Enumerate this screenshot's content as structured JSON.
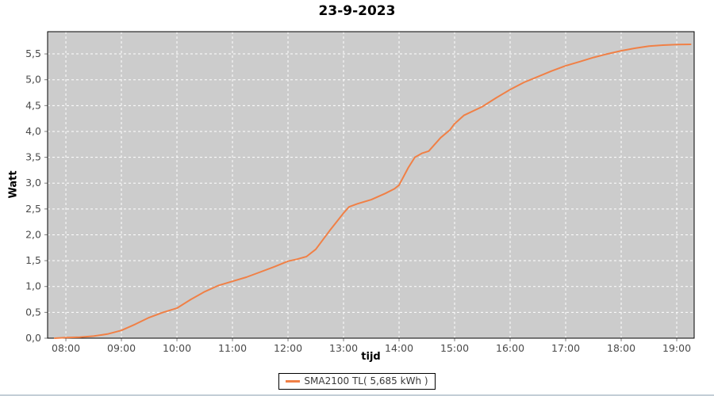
{
  "chart_data": {
    "type": "line",
    "title": "23-9-2023",
    "xlabel": "tijd",
    "ylabel": "Watt",
    "x_tick_labels": [
      "08:00",
      "09:00",
      "10:00",
      "11:00",
      "12:00",
      "13:00",
      "14:00",
      "15:00",
      "16:00",
      "17:00",
      "18:00",
      "19:00"
    ],
    "y_tick_labels": [
      "0,0",
      "0,5",
      "1,0",
      "1,5",
      "2,0",
      "2,5",
      "3,0",
      "3,5",
      "4,0",
      "4,5",
      "5,0",
      "5,5"
    ],
    "y_tick_values": [
      0,
      0.5,
      1.0,
      1.5,
      2.0,
      2.5,
      3.0,
      3.5,
      4.0,
      4.5,
      5.0,
      5.5
    ],
    "xlim_hours": [
      7.671,
      19.314
    ],
    "ylim": [
      0,
      5.93
    ],
    "grid": "white dashed on gray, both axes",
    "legend": {
      "position": "bottom-center",
      "label": "SMA2100 TL( 5,685 kWh )"
    },
    "series": [
      {
        "name": "SMA2100 TL( 5,685 kWh )",
        "color": "#f08046",
        "points": [
          [
            "07:48",
            0.0
          ],
          [
            "08:00",
            0.01
          ],
          [
            "08:15",
            0.02
          ],
          [
            "08:30",
            0.04
          ],
          [
            "08:45",
            0.08
          ],
          [
            "09:00",
            0.15
          ],
          [
            "09:15",
            0.27
          ],
          [
            "09:30",
            0.4
          ],
          [
            "09:45",
            0.5
          ],
          [
            "10:00",
            0.58
          ],
          [
            "10:15",
            0.75
          ],
          [
            "10:30",
            0.9
          ],
          [
            "10:45",
            1.02
          ],
          [
            "11:00",
            1.1
          ],
          [
            "11:15",
            1.18
          ],
          [
            "11:30",
            1.28
          ],
          [
            "11:45",
            1.38
          ],
          [
            "12:00",
            1.49
          ],
          [
            "12:10",
            1.53
          ],
          [
            "12:20",
            1.58
          ],
          [
            "12:30",
            1.72
          ],
          [
            "12:45",
            2.08
          ],
          [
            "13:00",
            2.42
          ],
          [
            "13:06",
            2.54
          ],
          [
            "13:15",
            2.6
          ],
          [
            "13:30",
            2.68
          ],
          [
            "13:45",
            2.8
          ],
          [
            "13:55",
            2.89
          ],
          [
            "14:00",
            2.96
          ],
          [
            "14:10",
            3.3
          ],
          [
            "14:17",
            3.5
          ],
          [
            "14:25",
            3.58
          ],
          [
            "14:32",
            3.62
          ],
          [
            "14:45",
            3.88
          ],
          [
            "14:55",
            4.03
          ],
          [
            "15:00",
            4.15
          ],
          [
            "15:10",
            4.31
          ],
          [
            "15:30",
            4.48
          ],
          [
            "15:45",
            4.65
          ],
          [
            "16:00",
            4.81
          ],
          [
            "16:15",
            4.95
          ],
          [
            "16:30",
            5.06
          ],
          [
            "16:45",
            5.17
          ],
          [
            "17:00",
            5.27
          ],
          [
            "17:15",
            5.35
          ],
          [
            "17:30",
            5.43
          ],
          [
            "17:45",
            5.5
          ],
          [
            "18:00",
            5.56
          ],
          [
            "18:15",
            5.61
          ],
          [
            "18:30",
            5.65
          ],
          [
            "18:45",
            5.67
          ],
          [
            "19:00",
            5.68
          ],
          [
            "19:15",
            5.685
          ]
        ],
        "total_kwh_label": "5,685 kWh"
      }
    ]
  },
  "colors": {
    "line": "#f08046",
    "plot_background": "#cccccc",
    "gridline": "#ffffff",
    "plot_border": "#000000",
    "tick_mark": "#808080",
    "tick_text": "#4a4a4a",
    "title_text": "#000000",
    "legend_border": "#000000",
    "legend_text": "#3a3a3a",
    "page_background": "#ffffff",
    "window_edge": "#c3ced6"
  }
}
